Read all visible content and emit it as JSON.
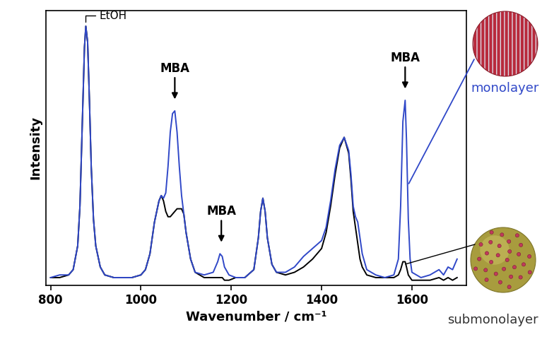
{
  "chart_data": {
    "type": "line",
    "x_label": "Wavenumber / cm⁻¹",
    "y_label": "Intensity",
    "x": [
      800,
      820,
      840,
      850,
      860,
      865,
      870,
      875,
      878,
      882,
      886,
      890,
      895,
      900,
      910,
      920,
      940,
      960,
      980,
      1000,
      1010,
      1020,
      1030,
      1040,
      1045,
      1050,
      1055,
      1060,
      1065,
      1070,
      1075,
      1080,
      1085,
      1090,
      1095,
      1100,
      1110,
      1120,
      1140,
      1160,
      1170,
      1175,
      1180,
      1185,
      1195,
      1210,
      1230,
      1250,
      1260,
      1265,
      1270,
      1275,
      1280,
      1290,
      1300,
      1320,
      1340,
      1360,
      1380,
      1400,
      1410,
      1420,
      1430,
      1440,
      1450,
      1460,
      1465,
      1470,
      1475,
      1480,
      1485,
      1490,
      1500,
      1520,
      1540,
      1560,
      1570,
      1575,
      1580,
      1585,
      1588,
      1592,
      1596,
      1600,
      1620,
      1640,
      1660,
      1670,
      1680,
      1690,
      1700
    ],
    "series": [
      {
        "name": "submonolayer",
        "color": "#000000",
        "values": [
          3,
          3,
          4,
          6,
          15,
          30,
          60,
          90,
          98,
          92,
          70,
          45,
          25,
          15,
          7,
          4,
          3,
          3,
          3,
          4,
          6,
          12,
          24,
          32,
          34,
          32,
          28,
          26,
          26,
          27,
          28,
          29,
          29,
          29,
          27,
          20,
          10,
          5,
          3,
          3,
          3,
          3,
          3,
          2,
          2,
          3,
          3,
          6,
          18,
          28,
          33,
          28,
          18,
          8,
          5,
          4,
          5,
          7,
          10,
          14,
          20,
          30,
          42,
          52,
          56,
          50,
          40,
          28,
          22,
          16,
          10,
          7,
          4,
          3,
          3,
          3,
          4,
          6,
          9,
          9,
          7,
          4,
          3,
          2,
          2,
          2,
          3,
          2,
          3,
          2,
          3
        ]
      },
      {
        "name": "monolayer",
        "color": "#3048c8",
        "values": [
          3,
          4,
          4,
          6,
          15,
          30,
          60,
          90,
          98,
          92,
          70,
          45,
          25,
          15,
          7,
          4,
          3,
          3,
          3,
          4,
          6,
          12,
          24,
          32,
          34,
          33,
          35,
          45,
          58,
          65,
          66,
          58,
          45,
          34,
          27,
          20,
          10,
          5,
          4,
          5,
          9,
          12,
          11,
          7,
          4,
          3,
          3,
          6,
          18,
          28,
          33,
          28,
          18,
          8,
          5,
          5,
          7,
          11,
          14,
          17,
          22,
          32,
          44,
          53,
          56,
          51,
          42,
          30,
          26,
          24,
          18,
          12,
          6,
          4,
          3,
          4,
          10,
          30,
          62,
          70,
          55,
          25,
          10,
          5,
          3,
          4,
          6,
          4,
          7,
          6,
          10
        ]
      }
    ],
    "annotations": [
      {
        "text": "EtOH",
        "x": 878,
        "y": 99,
        "marker": "bracket"
      },
      {
        "text": "MBA",
        "x": 1075,
        "y": 70,
        "marker": "arrow"
      },
      {
        "text": "MBA",
        "x": 1178,
        "y": 16,
        "marker": "arrow"
      },
      {
        "text": "MBA",
        "x": 1585,
        "y": 74,
        "marker": "arrow"
      }
    ],
    "xlim": [
      790,
      1720
    ],
    "ylim": [
      0,
      104
    ],
    "xticks": [
      800,
      1000,
      1200,
      1400,
      1600
    ],
    "tick_labels": "x"
  }
}
